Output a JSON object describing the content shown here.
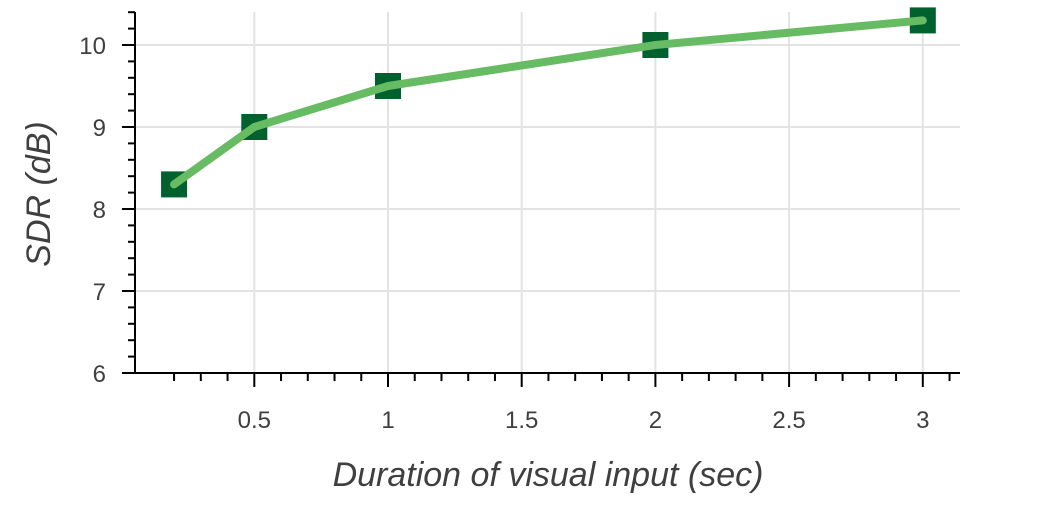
{
  "chart_data": {
    "type": "line",
    "title": "",
    "xlabel": "Duration of visual input (sec)",
    "ylabel": "SDR (dB)",
    "x": [
      0.2,
      0.5,
      1,
      2,
      3
    ],
    "series": [
      {
        "values": [
          8.3,
          9.0,
          9.5,
          10.0,
          10.3
        ]
      }
    ],
    "xlim": [
      0.1,
      3.15
    ],
    "ylim": [
      6,
      10.4
    ],
    "xticks": [
      0.5,
      1,
      1.5,
      2,
      2.5,
      3
    ],
    "xtick_labels": [
      "0.5",
      "1",
      "1.5",
      "2",
      "2.5",
      "3"
    ],
    "yticks": [
      6,
      7,
      8,
      9,
      10
    ],
    "ytick_labels": [
      "6",
      "7",
      "8",
      "9",
      "10"
    ],
    "grid": true,
    "line_color": "#66bb63",
    "marker_color": "#00602e",
    "marker": "square"
  }
}
